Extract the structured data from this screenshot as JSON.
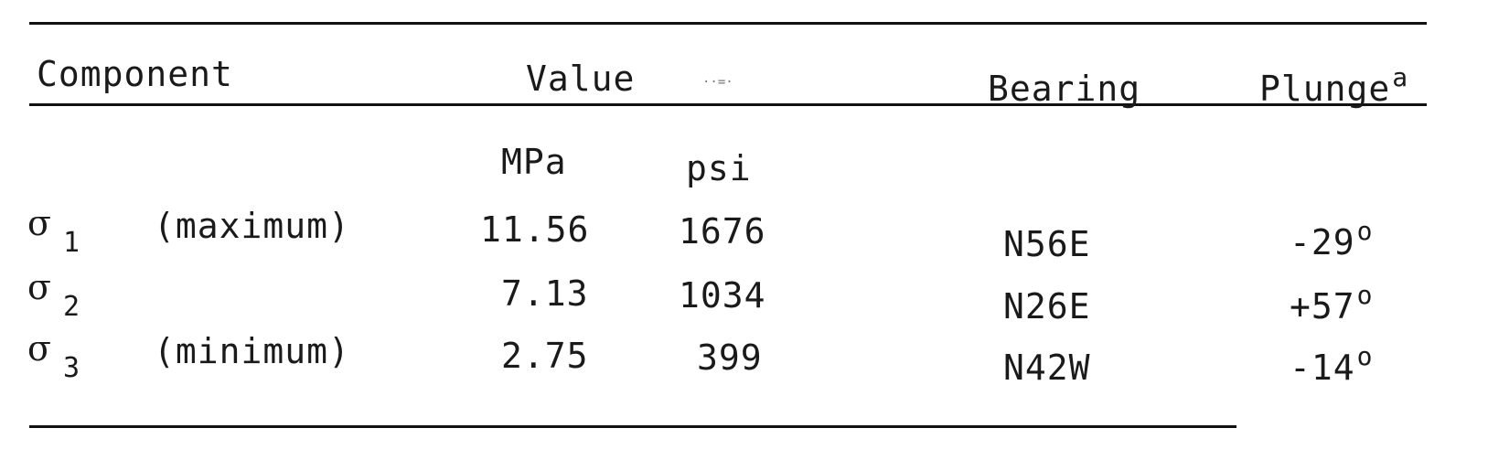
{
  "table": {
    "headers": {
      "component": "Component",
      "value": "Value",
      "bearing": "Bearing",
      "plunge": "Plunge",
      "plunge_footnote_marker": "a"
    },
    "units": {
      "mpa": "MPa",
      "psi": "psi"
    },
    "rows": [
      {
        "symbol": "σ",
        "subscript": "1",
        "qualifier": "(maximum)",
        "mpa": "11.56",
        "psi": "1676",
        "bearing": "N56E",
        "plunge": "-29",
        "degree": "o"
      },
      {
        "symbol": "σ",
        "subscript": "2",
        "qualifier": "",
        "mpa": "7.13",
        "psi": "1034",
        "bearing": "N26E",
        "plunge": "+57",
        "degree": "o"
      },
      {
        "symbol": "σ",
        "subscript": "3",
        "qualifier": "(minimum)",
        "mpa": "2.75",
        "psi": "399",
        "bearing": "N42W",
        "plunge": "-14",
        "degree": "o"
      }
    ]
  }
}
